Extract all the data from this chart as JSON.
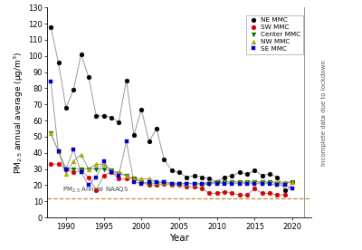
{
  "years": [
    1988,
    1989,
    1990,
    1991,
    1992,
    1993,
    1994,
    1995,
    1996,
    1997,
    1998,
    1999,
    2000,
    2001,
    2002,
    2003,
    2004,
    2005,
    2006,
    2007,
    2008,
    2009,
    2010,
    2011,
    2012,
    2013,
    2014,
    2015,
    2016,
    2017,
    2018,
    2019,
    2020,
    2021
  ],
  "NE_MMC": [
    118,
    96,
    68,
    79,
    101,
    87,
    63,
    63,
    62,
    59,
    85,
    51,
    67,
    47,
    55,
    36,
    29,
    28,
    25,
    26,
    25,
    24,
    22,
    25,
    26,
    28,
    27,
    29,
    26,
    27,
    25,
    17,
    null,
    null
  ],
  "SW_MMC": [
    33,
    33,
    30,
    28,
    29,
    25,
    17,
    26,
    28,
    24,
    24,
    24,
    22,
    20,
    20,
    21,
    20,
    20,
    19,
    19,
    18,
    15,
    15,
    16,
    15,
    14,
    14,
    18,
    15,
    15,
    14,
    14,
    22,
    null
  ],
  "Center_MMC": [
    52,
    41,
    30,
    30,
    30,
    30,
    30,
    30,
    29,
    27,
    26,
    24,
    22,
    21,
    21,
    22,
    21,
    21,
    21,
    21,
    20,
    21,
    22,
    22,
    22,
    22,
    22,
    22,
    22,
    22,
    21,
    21,
    22,
    null
  ],
  "NW_MMC": [
    52,
    41,
    27,
    35,
    39,
    30,
    33,
    33,
    29,
    28,
    26,
    24,
    24,
    24,
    22,
    22,
    21,
    21,
    21,
    21,
    21,
    22,
    22,
    22,
    22,
    22,
    22,
    22,
    22,
    22,
    22,
    22,
    22,
    null
  ],
  "SE_MMC": [
    84,
    41,
    30,
    42,
    28,
    20,
    25,
    35,
    28,
    26,
    47,
    22,
    21,
    22,
    22,
    22,
    21,
    21,
    21,
    21,
    21,
    21,
    21,
    21,
    21,
    21,
    21,
    21,
    21,
    21,
    20,
    20,
    18,
    null
  ],
  "naaqs_value": 12,
  "ylabel": "PM$_{2.5}$ annual average (μg/m$^{3}$)",
  "xlabel": "Year",
  "naaqs_label": "PM$_{2.5}$ Annual NAAQS",
  "right_label": "Incomplete data due to lockdown",
  "ylim": [
    0,
    130
  ],
  "xlim_min": 1987.5,
  "xlim_max": 2022.5,
  "yticks": [
    0,
    10,
    20,
    30,
    40,
    50,
    60,
    70,
    80,
    90,
    100,
    110,
    120,
    130
  ],
  "xticks": [
    1990,
    1995,
    2000,
    2005,
    2010,
    2015,
    2020
  ],
  "ne_color": "#000000",
  "sw_color": "#dd0000",
  "center_color": "#007700",
  "nw_color": "#aaaa00",
  "se_color": "#0000cc",
  "line_color": "#999999",
  "naaqs_color": "#cc8833",
  "bg_color": "#ffffff"
}
